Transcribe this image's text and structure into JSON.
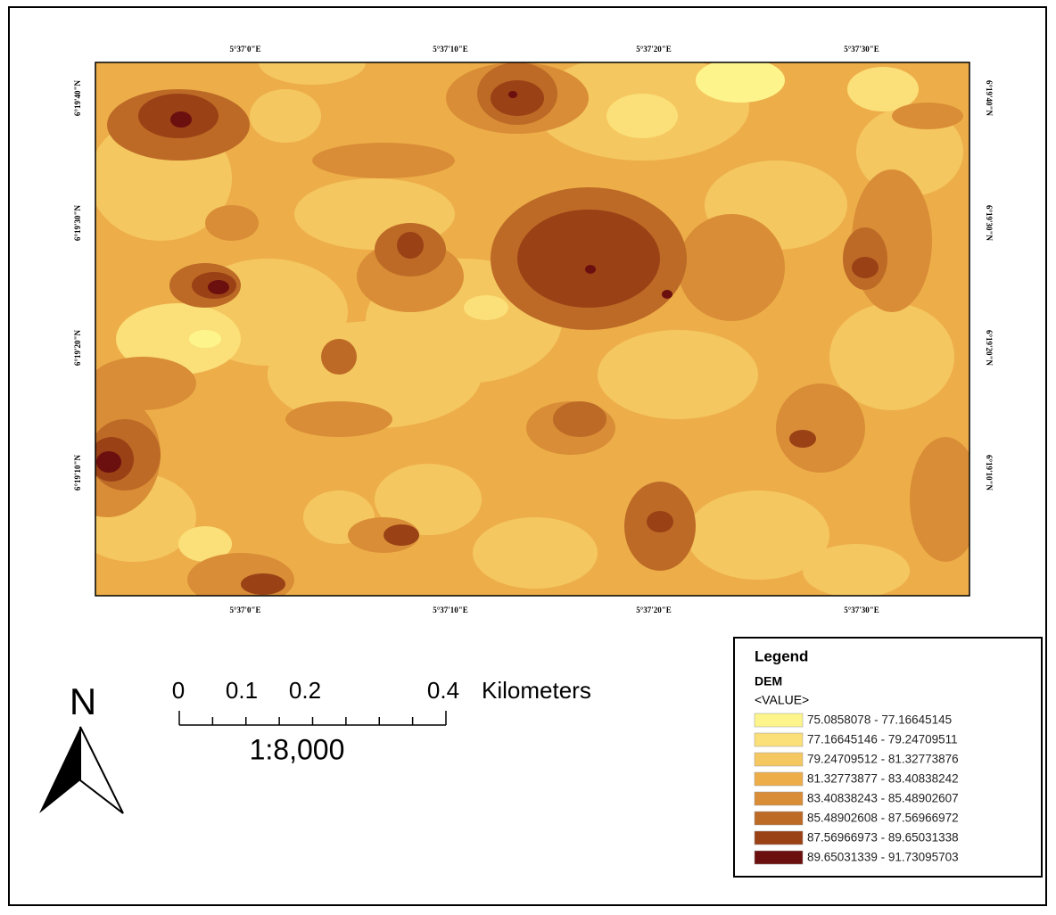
{
  "map": {
    "top_labels": [
      "5°37'0\"E",
      "5°37'10\"E",
      "5°37'20\"E",
      "5°37'30\"E"
    ],
    "bottom_labels": [
      "5°37'0\"E",
      "5°37'10\"E",
      "5°37'20\"E",
      "5°37'30\"E"
    ],
    "left_labels": [
      "6°19'40\"N",
      "6°19'30\"N",
      "6°19'20\"N",
      "6°19'10\"N"
    ],
    "right_labels": [
      "6°19'40\"N",
      "6°19'30\"N",
      "6°19'20\"N",
      "6°19'10\"N"
    ]
  },
  "north_arrow": "N",
  "scale_bar": {
    "ticks": [
      "0",
      "0.1",
      "0.2",
      "0.4"
    ],
    "unit": "Kilometers",
    "ratio": "1:8,000"
  },
  "legend": {
    "title": "Legend",
    "layer": "DEM",
    "field": "<VALUE>",
    "classes": [
      {
        "label": "75.0858078 - 77.16645145",
        "color": "#fdf58c"
      },
      {
        "label": "77.16645146 - 79.24709511",
        "color": "#fbdf78"
      },
      {
        "label": "79.24709512 - 81.32773876",
        "color": "#f5c760"
      },
      {
        "label": "81.32773877 - 83.40838242",
        "color": "#edae4a"
      },
      {
        "label": "83.40838243 - 85.48902607",
        "color": "#d98d36"
      },
      {
        "label": "85.48902608 - 87.56966972",
        "color": "#bd6a26"
      },
      {
        "label": "87.56966973 - 89.65031338",
        "color": "#9a4116"
      },
      {
        "label": "89.65031339 - 91.73095703",
        "color": "#6c0f0f"
      }
    ]
  }
}
